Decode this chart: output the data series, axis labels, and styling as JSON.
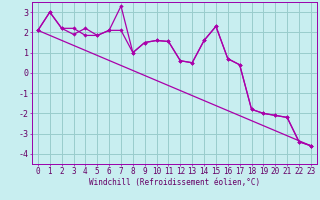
{
  "x_all": [
    0,
    1,
    2,
    3,
    4,
    5,
    6,
    7,
    8,
    9,
    10,
    11,
    12,
    13,
    14,
    15,
    16,
    17,
    18,
    19,
    20,
    21,
    22,
    23
  ],
  "line1_y": [
    2.1,
    3.0,
    2.2,
    1.9,
    2.2,
    1.85,
    2.1,
    3.3,
    1.0,
    1.5,
    1.6,
    1.55,
    0.6,
    0.5,
    1.6,
    2.3,
    0.7,
    0.4,
    -1.8,
    -2.0,
    -2.1,
    -2.2,
    -3.4,
    -3.6
  ],
  "line2_y": [
    2.1,
    3.0,
    2.2,
    2.2,
    1.85,
    1.85,
    2.1,
    2.1,
    1.0,
    1.5,
    1.6,
    1.55,
    0.6,
    0.5,
    1.6,
    2.3,
    0.7,
    0.4,
    -1.8,
    -2.0,
    -2.1,
    -2.2,
    -3.4,
    -3.6
  ],
  "trend_x": [
    0,
    23
  ],
  "trend_y": [
    2.1,
    -3.6
  ],
  "color": "#aa00aa",
  "bg_color": "#c8eef0",
  "grid_color": "#99cccc",
  "xlabel": "Windchill (Refroidissement éolien,°C)",
  "ylim": [
    -4.5,
    3.5
  ],
  "xlim": [
    -0.5,
    23.5
  ],
  "yticks": [
    -4,
    -3,
    -2,
    -1,
    0,
    1,
    2,
    3
  ],
  "xticks": [
    0,
    1,
    2,
    3,
    4,
    5,
    6,
    7,
    8,
    9,
    10,
    11,
    12,
    13,
    14,
    15,
    16,
    17,
    18,
    19,
    20,
    21,
    22,
    23
  ],
  "tick_fontsize": 5.5,
  "label_fontsize": 5.5
}
